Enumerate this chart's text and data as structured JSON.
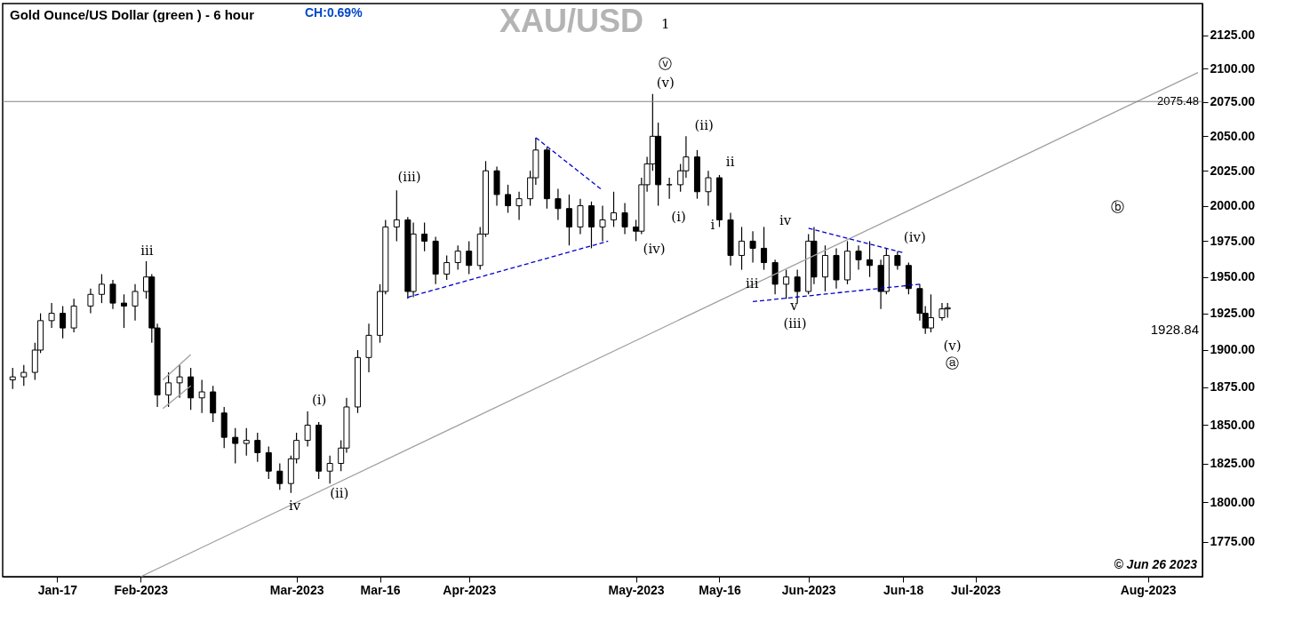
{
  "chart_data": {
    "type": "candlestick",
    "title": "XAU/USD",
    "subtitle": "Gold Ounce/US Dollar (green ) - 6 hour",
    "color": "#000000",
    "log": true,
    "xlim": [
      "2023-01-08",
      "2023-08-10"
    ],
    "xticks": [
      {
        "value": "2023-01-17",
        "label": "Jan-17"
      },
      {
        "value": "2023-02-01",
        "label": "Feb-2023"
      },
      {
        "value": "2023-03-01",
        "label": "Mar-2023"
      },
      {
        "value": "2023-03-16",
        "label": "Mar-16"
      },
      {
        "value": "2023-04-01",
        "label": "Apr-2023"
      },
      {
        "value": "2023-05-01",
        "label": "May-2023"
      },
      {
        "value": "2023-05-16",
        "label": "May-16"
      },
      {
        "value": "2023-06-01",
        "label": "Jun-2023"
      },
      {
        "value": "2023-06-18",
        "label": "Jun-18"
      },
      {
        "value": "2023-07-01",
        "label": "Jul-2023"
      },
      {
        "value": "2023-08-01",
        "label": "Aug-2023"
      }
    ],
    "ylim": [
      1753,
      2149
    ],
    "yticks": [
      {
        "value": 1775,
        "label": "1775.00"
      },
      {
        "value": 1800,
        "label": "1800.00"
      },
      {
        "value": 1825,
        "label": "1825.00"
      },
      {
        "value": 1850,
        "label": "1850.00"
      },
      {
        "value": 1875,
        "label": "1875.00"
      },
      {
        "value": 1900,
        "label": "1900.00"
      },
      {
        "value": 1925,
        "label": "1925.00"
      },
      {
        "value": 1950,
        "label": "1950.00"
      },
      {
        "value": 1975,
        "label": "1975.00"
      },
      {
        "value": 2000,
        "label": "2000.00"
      },
      {
        "value": 2025,
        "label": "2025.00"
      },
      {
        "value": 2050,
        "label": "2050.00"
      },
      {
        "value": 2075,
        "label": "2075.00"
      },
      {
        "value": 2100,
        "label": "2100.00"
      },
      {
        "value": 2125,
        "label": "2125.00"
      }
    ],
    "x": [
      "2023-01-09",
      "2023-01-11",
      "2023-01-13",
      "2023-01-14",
      "2023-01-16",
      "2023-01-18",
      "2023-01-20",
      "2023-01-23",
      "2023-01-25",
      "2023-01-27",
      "2023-01-29",
      "2023-01-31",
      "2023-02-02",
      "2023-02-03",
      "2023-02-04",
      "2023-02-06",
      "2023-02-08",
      "2023-02-10",
      "2023-02-12",
      "2023-02-14",
      "2023-02-16",
      "2023-02-18",
      "2023-02-20",
      "2023-02-22",
      "2023-02-24",
      "2023-02-26",
      "2023-02-28",
      "2023-03-01",
      "2023-03-03",
      "2023-03-05",
      "2023-03-07",
      "2023-03-09",
      "2023-03-10",
      "2023-03-12",
      "2023-03-14",
      "2023-03-16",
      "2023-03-17",
      "2023-03-19",
      "2023-03-21",
      "2023-03-22",
      "2023-03-24",
      "2023-03-26",
      "2023-03-28",
      "2023-03-30",
      "2023-04-01",
      "2023-04-03",
      "2023-04-04",
      "2023-04-06",
      "2023-04-08",
      "2023-04-10",
      "2023-04-12",
      "2023-04-13",
      "2023-04-15",
      "2023-04-17",
      "2023-04-19",
      "2023-04-21",
      "2023-04-23",
      "2023-04-25",
      "2023-04-27",
      "2023-04-29",
      "2023-05-01",
      "2023-05-02",
      "2023-05-03",
      "2023-05-04",
      "2023-05-05",
      "2023-05-07",
      "2023-05-09",
      "2023-05-10",
      "2023-05-12",
      "2023-05-14",
      "2023-05-16",
      "2023-05-18",
      "2023-05-20",
      "2023-05-22",
      "2023-05-24",
      "2023-05-26",
      "2023-05-28",
      "2023-05-30",
      "2023-06-01",
      "2023-06-02",
      "2023-06-04",
      "2023-06-06",
      "2023-06-08",
      "2023-06-10",
      "2023-06-12",
      "2023-06-14",
      "2023-06-15",
      "2023-06-17",
      "2023-06-19",
      "2023-06-21",
      "2023-06-22",
      "2023-06-23",
      "2023-06-25",
      "2023-06-26"
    ],
    "ohlc": [
      [
        1880,
        1888,
        1874,
        1882
      ],
      [
        1882,
        1890,
        1876,
        1885
      ],
      [
        1885,
        1905,
        1880,
        1900
      ],
      [
        1900,
        1925,
        1898,
        1920
      ],
      [
        1920,
        1932,
        1915,
        1925
      ],
      [
        1925,
        1930,
        1908,
        1915
      ],
      [
        1915,
        1935,
        1912,
        1930
      ],
      [
        1930,
        1942,
        1925,
        1938
      ],
      [
        1938,
        1952,
        1932,
        1945
      ],
      [
        1945,
        1948,
        1928,
        1932
      ],
      [
        1932,
        1938,
        1915,
        1930
      ],
      [
        1930,
        1945,
        1920,
        1940
      ],
      [
        1940,
        1961,
        1935,
        1950
      ],
      [
        1950,
        1952,
        1905,
        1915
      ],
      [
        1915,
        1918,
        1862,
        1870
      ],
      [
        1870,
        1885,
        1862,
        1878
      ],
      [
        1878,
        1890,
        1868,
        1882
      ],
      [
        1882,
        1888,
        1860,
        1868
      ],
      [
        1868,
        1880,
        1858,
        1872
      ],
      [
        1872,
        1876,
        1852,
        1858
      ],
      [
        1858,
        1862,
        1835,
        1842
      ],
      [
        1842,
        1848,
        1825,
        1838
      ],
      [
        1838,
        1848,
        1830,
        1840
      ],
      [
        1840,
        1845,
        1826,
        1832
      ],
      [
        1832,
        1836,
        1815,
        1820
      ],
      [
        1820,
        1825,
        1808,
        1812
      ],
      [
        1812,
        1830,
        1806,
        1828
      ],
      [
        1828,
        1845,
        1825,
        1840
      ],
      [
        1840,
        1859,
        1836,
        1850
      ],
      [
        1850,
        1852,
        1815,
        1820
      ],
      [
        1820,
        1830,
        1812,
        1825
      ],
      [
        1825,
        1840,
        1820,
        1835
      ],
      [
        1835,
        1868,
        1832,
        1862
      ],
      [
        1862,
        1900,
        1858,
        1895
      ],
      [
        1895,
        1918,
        1885,
        1910
      ],
      [
        1910,
        1945,
        1905,
        1940
      ],
      [
        1940,
        1990,
        1938,
        1985
      ],
      [
        1985,
        2011,
        1975,
        1990
      ],
      [
        1990,
        1992,
        1935,
        1940
      ],
      [
        1940,
        1988,
        1936,
        1980
      ],
      [
        1980,
        1988,
        1968,
        1975
      ],
      [
        1975,
        1978,
        1945,
        1952
      ],
      [
        1952,
        1965,
        1948,
        1960
      ],
      [
        1960,
        1972,
        1955,
        1968
      ],
      [
        1968,
        1975,
        1952,
        1958
      ],
      [
        1958,
        1985,
        1955,
        1980
      ],
      [
        1980,
        2032,
        1978,
        2025
      ],
      [
        2025,
        2028,
        2000,
        2008
      ],
      [
        2008,
        2015,
        1995,
        2000
      ],
      [
        2000,
        2010,
        1990,
        2005
      ],
      [
        2005,
        2025,
        2000,
        2020
      ],
      [
        2020,
        2049,
        2015,
        2040
      ],
      [
        2040,
        2042,
        1998,
        2005
      ],
      [
        2005,
        2012,
        1990,
        1998
      ],
      [
        1998,
        2008,
        1972,
        1985
      ],
      [
        1985,
        2005,
        1980,
        2000
      ],
      [
        2000,
        2003,
        1970,
        1985
      ],
      [
        1985,
        2000,
        1975,
        1990
      ],
      [
        1990,
        2010,
        1985,
        1995
      ],
      [
        1995,
        2002,
        1980,
        1985
      ],
      [
        1985,
        1990,
        1975,
        1982
      ],
      [
        1982,
        2020,
        1980,
        2015
      ],
      [
        2015,
        2035,
        2010,
        2030
      ],
      [
        2030,
        2081,
        2025,
        2050
      ],
      [
        2050,
        2060,
        2000,
        2015
      ],
      [
        2015,
        2020,
        2005,
        2015
      ],
      [
        2015,
        2030,
        2010,
        2025
      ],
      [
        2025,
        2050,
        2020,
        2035
      ],
      [
        2035,
        2040,
        2005,
        2010
      ],
      [
        2010,
        2025,
        2000,
        2020
      ],
      [
        2020,
        2022,
        1985,
        1990
      ],
      [
        1990,
        1995,
        1958,
        1965
      ],
      [
        1965,
        1985,
        1955,
        1975
      ],
      [
        1975,
        1982,
        1960,
        1970
      ],
      [
        1970,
        1985,
        1955,
        1960
      ],
      [
        1960,
        1962,
        1938,
        1945
      ],
      [
        1945,
        1955,
        1935,
        1950
      ],
      [
        1950,
        1955,
        1932,
        1940
      ],
      [
        1940,
        1980,
        1938,
        1975
      ],
      [
        1975,
        1985,
        1945,
        1950
      ],
      [
        1950,
        1972,
        1940,
        1965
      ],
      [
        1965,
        1970,
        1942,
        1948
      ],
      [
        1948,
        1975,
        1945,
        1968
      ],
      [
        1968,
        1972,
        1955,
        1962
      ],
      [
        1962,
        1975,
        1950,
        1958
      ],
      [
        1958,
        1962,
        1928,
        1940
      ],
      [
        1940,
        1970,
        1938,
        1965
      ],
      [
        1965,
        1968,
        1955,
        1958
      ],
      [
        1958,
        1960,
        1938,
        1942
      ],
      [
        1942,
        1945,
        1920,
        1925
      ],
      [
        1925,
        1930,
        1911,
        1915
      ],
      [
        1915,
        1938,
        1912,
        1922
      ],
      [
        1922,
        1932,
        1920,
        1928
      ],
      [
        1928,
        1932,
        1922,
        1928.84
      ]
    ],
    "series": [
      {
        "type": "line",
        "color": "#a0a0a0",
        "line_style": "solid",
        "x": [
          "2023-02-01",
          "2023-08-10"
        ],
        "values": [
          1753,
          2097
        ]
      },
      {
        "type": "line",
        "color": "#a0a0a0",
        "line_style": "solid",
        "x": [
          "2023-02-05",
          "2023-02-10"
        ],
        "values": [
          1861,
          1876
        ]
      },
      {
        "type": "line",
        "color": "#a0a0a0",
        "line_style": "solid",
        "x": [
          "2023-02-05",
          "2023-02-10"
        ],
        "values": [
          1880,
          1897
        ]
      },
      {
        "type": "line",
        "color": "#0000cc",
        "line_style": "dashed",
        "x": [
          "2023-03-21",
          "2023-04-26"
        ],
        "values": [
          1936,
          1975
        ]
      },
      {
        "type": "line",
        "color": "#0000cc",
        "line_style": "dashed",
        "x": [
          "2023-04-13",
          "2023-04-25"
        ],
        "values": [
          2049,
          2011
        ]
      },
      {
        "type": "line",
        "color": "#0000cc",
        "line_style": "dashed",
        "x": [
          "2023-05-22",
          "2023-06-21"
        ],
        "values": [
          1933,
          1945
        ]
      },
      {
        "type": "line",
        "color": "#0000cc",
        "line_style": "dashed",
        "x": [
          "2023-06-01",
          "2023-06-18"
        ],
        "values": [
          1984,
          1967
        ]
      }
    ],
    "ref_lines": [
      {
        "axis": "y",
        "value": 2075.48,
        "label": "2075.48",
        "color": "#808080"
      }
    ],
    "annotations": [
      "CH:0.69%",
      "© Jun 26 2023",
      "iii",
      "iv",
      "(i)",
      "(ii)",
      "(iii)",
      "1",
      "ⓥ",
      "(v)",
      "(iv)",
      "(i)",
      "(ii)",
      "ii",
      "i",
      "iii",
      "iv",
      "v",
      "(iii)",
      "(iv)",
      "(v)",
      "ⓐ",
      "ⓑ",
      "1928.84"
    ]
  }
}
